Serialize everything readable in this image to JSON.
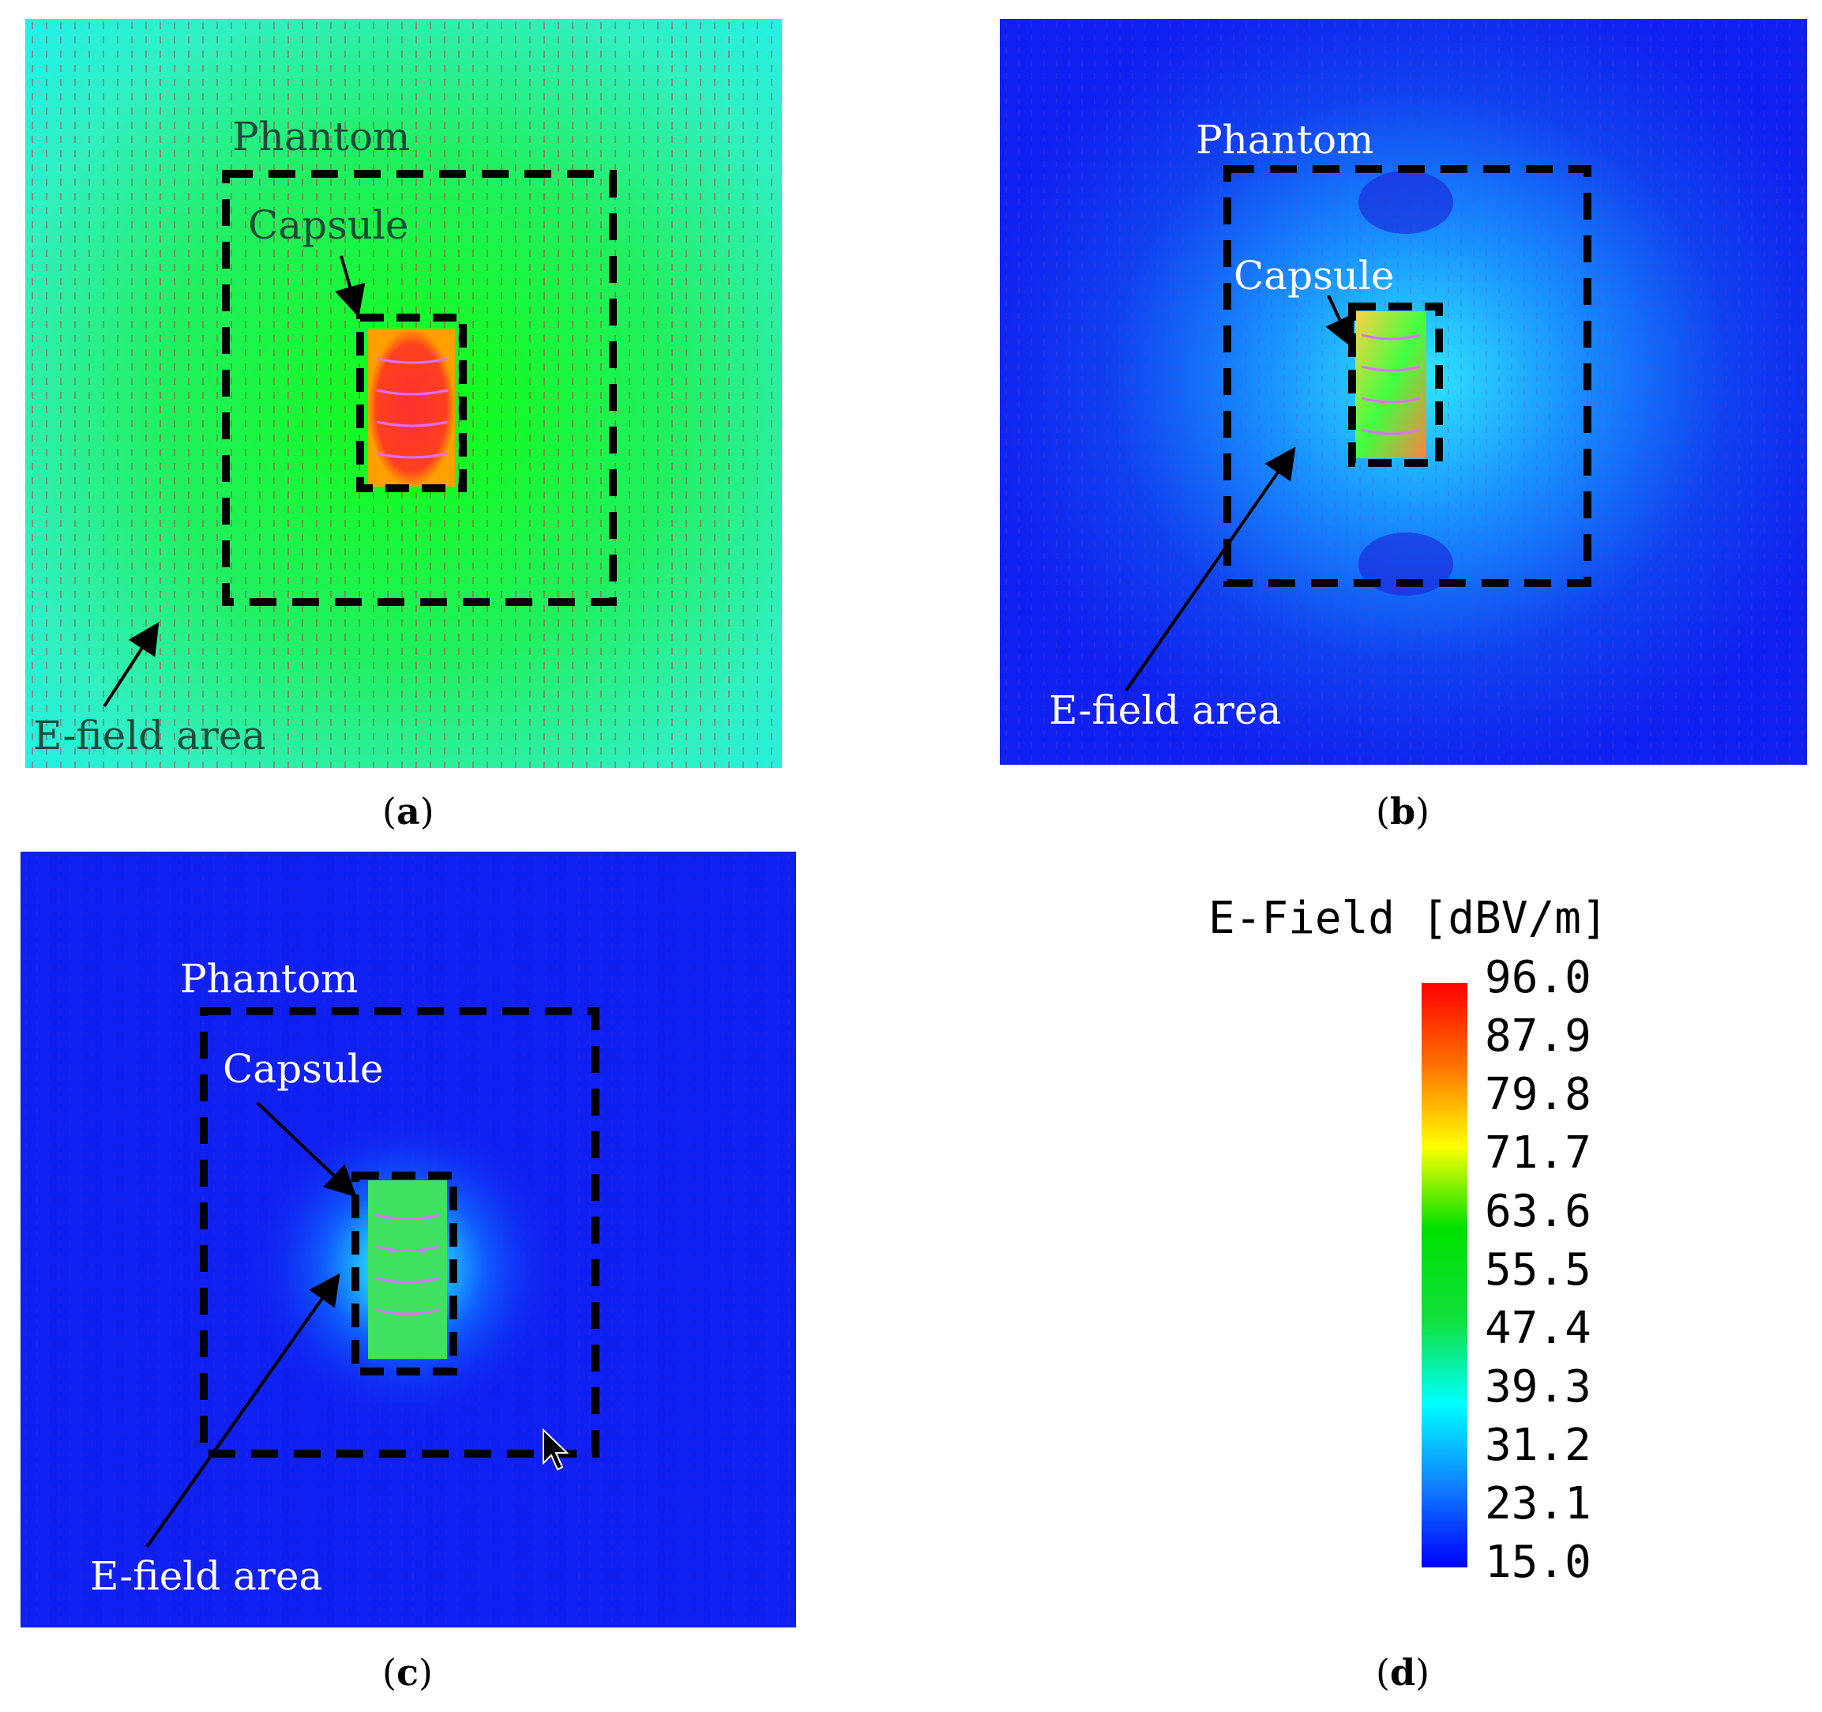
{
  "panels": [
    {
      "id": "a",
      "caption": "a",
      "labels": {
        "phantom": "Phantom",
        "capsule": "Capsule",
        "area": "E-field area"
      }
    },
    {
      "id": "b",
      "caption": "b",
      "labels": {
        "phantom": "Phantom",
        "capsule": "Capsule",
        "area": "E-field area"
      }
    },
    {
      "id": "c",
      "caption": "c",
      "labels": {
        "phantom": "Phantom",
        "capsule": "Capsule",
        "area": "E-field area"
      }
    },
    {
      "id": "d",
      "caption": "d"
    }
  ],
  "legend": {
    "title": "E-Field [dBV/m]",
    "ticks": [
      "96.0",
      "87.9",
      "79.8",
      "71.7",
      "63.6",
      "55.5",
      "47.4",
      "39.3",
      "31.2",
      "23.1",
      "15.0"
    ],
    "min": 15.0,
    "max": 96.0,
    "colors": [
      "#ff0000",
      "#ff8000",
      "#ffff00",
      "#00e000",
      "#00ff40",
      "#00ffff",
      "#0000ff"
    ]
  }
}
